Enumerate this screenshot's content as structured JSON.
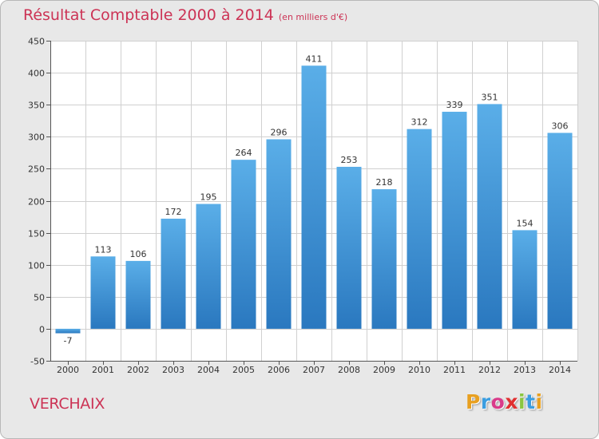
{
  "chart_data": {
    "type": "bar",
    "title": "Résultat Comptable 2000 à 2014",
    "subtitle": "(en milliers d'€)",
    "categories": [
      "2000",
      "2001",
      "2002",
      "2003",
      "2004",
      "2005",
      "2006",
      "2007",
      "2008",
      "2009",
      "2010",
      "2011",
      "2012",
      "2013",
      "2014"
    ],
    "values": [
      -7,
      113,
      106,
      172,
      195,
      264,
      296,
      411,
      253,
      218,
      312,
      339,
      351,
      154,
      306
    ],
    "ylim": [
      -50,
      450
    ],
    "yticks": [
      -50,
      0,
      50,
      100,
      150,
      200,
      250,
      300,
      350,
      400,
      450
    ],
    "xlabel": "",
    "ylabel": "",
    "grid": true,
    "bar_color": "#3d8fd6"
  },
  "footer": {
    "commune": "VERCHAIX",
    "logo_letters": [
      "P",
      "r",
      "o",
      "x",
      "i",
      "t",
      "i"
    ],
    "logo_colors": [
      "#e8a020",
      "#3a9de0",
      "#d93b8a",
      "#e03030",
      "#8ac640",
      "#3a9de0",
      "#e8a020"
    ]
  }
}
